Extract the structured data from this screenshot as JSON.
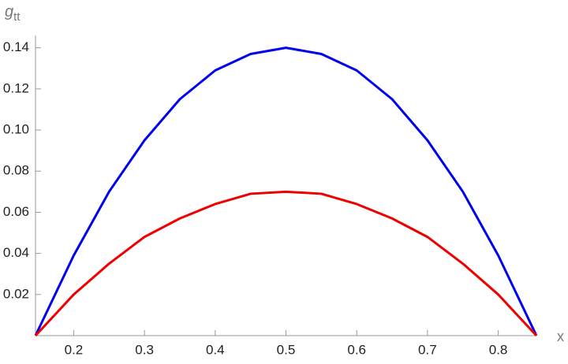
{
  "chart_data": {
    "type": "line",
    "y_label": {
      "base": "g",
      "sub": "tt"
    },
    "x_label": "x",
    "x": [
      0.146,
      0.2,
      0.25,
      0.3,
      0.35,
      0.4,
      0.45,
      0.5,
      0.55,
      0.6,
      0.65,
      0.7,
      0.75,
      0.8,
      0.854
    ],
    "series": [
      {
        "color": "#0000ee",
        "values": [
          0,
          0.039,
          0.07,
          0.095,
          0.115,
          0.129,
          0.137,
          0.14,
          0.137,
          0.129,
          0.115,
          0.095,
          0.07,
          0.039,
          0
        ]
      },
      {
        "color": "#ee0000",
        "values": [
          0,
          0.02,
          0.035,
          0.048,
          0.057,
          0.064,
          0.069,
          0.07,
          0.069,
          0.064,
          0.057,
          0.048,
          0.035,
          0.02,
          0
        ]
      }
    ],
    "xlim": [
      0.146,
      0.854
    ],
    "ylim": [
      0,
      0.146
    ],
    "xticks": [
      0.2,
      0.3,
      0.4,
      0.5,
      0.6,
      0.7,
      0.8
    ],
    "yticks": [
      {
        "value": 0.02,
        "label": "0.02"
      },
      {
        "value": 0.04,
        "label": "0.04"
      },
      {
        "value": 0.06,
        "label": "0.06"
      },
      {
        "value": 0.08,
        "label": "0.08"
      },
      {
        "value": 0.1,
        "label": "0.10"
      },
      {
        "value": 0.12,
        "label": "0.12"
      },
      {
        "value": 0.14,
        "label": "0.14"
      }
    ]
  }
}
